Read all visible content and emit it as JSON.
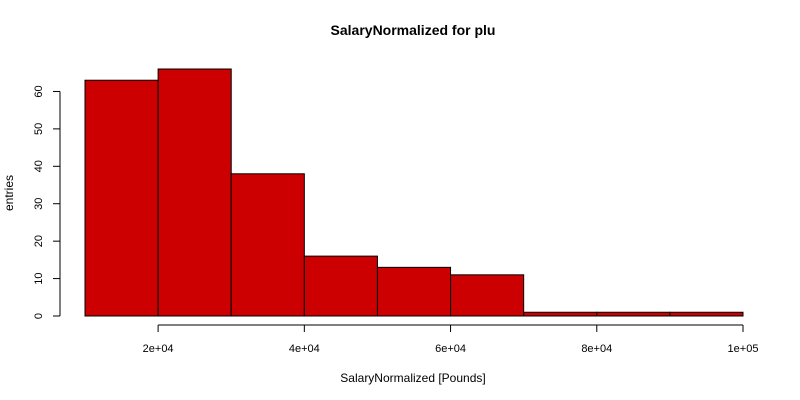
{
  "chart_data": {
    "type": "bar",
    "title": "SalaryNormalized for plu",
    "xlabel": "SalaryNormalized [Pounds]",
    "ylabel": "entries",
    "bin_edges": [
      10000,
      20000,
      30000,
      40000,
      50000,
      60000,
      70000,
      80000,
      90000,
      100000
    ],
    "values": [
      63,
      66,
      38,
      16,
      13,
      11,
      1,
      1,
      1
    ],
    "xlim": [
      10000,
      100000
    ],
    "ylim": [
      0,
      66
    ],
    "x_ticks": [
      20000,
      40000,
      60000,
      80000,
      100000
    ],
    "x_tick_labels": [
      "2e+04",
      "4e+04",
      "6e+04",
      "8e+04",
      "1e+05"
    ],
    "y_ticks": [
      0,
      10,
      20,
      30,
      40,
      50,
      60
    ],
    "y_tick_labels": [
      "0",
      "10",
      "20",
      "30",
      "40",
      "50",
      "60"
    ],
    "bar_color": "#cc0000",
    "bar_edge_color": "#000000",
    "grid": false,
    "legend": "none"
  }
}
